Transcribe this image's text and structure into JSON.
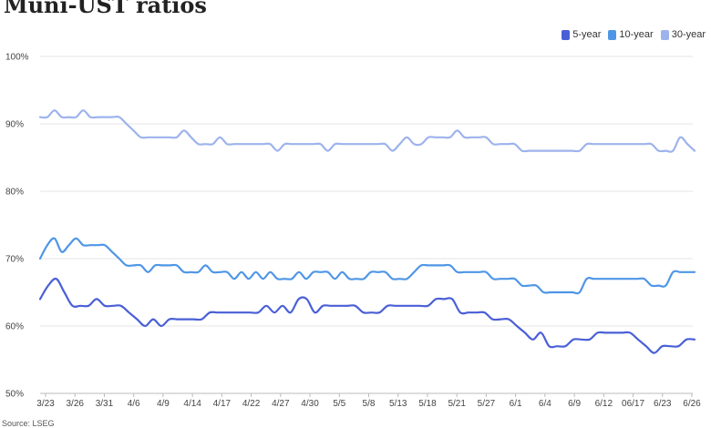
{
  "title": "Muni-UST ratios",
  "source": "Source: LSEG",
  "chart_data": {
    "type": "line",
    "title": "Muni-UST ratios",
    "xlabel": "",
    "ylabel": "",
    "ylim": [
      50,
      100
    ],
    "y_ticks": [
      "50%",
      "60%",
      "70%",
      "80%",
      "90%",
      "100%"
    ],
    "y_tick_values": [
      50,
      60,
      70,
      80,
      90,
      100
    ],
    "x_tick_labels": [
      "3/23",
      "3/26",
      "3/31",
      "4/6",
      "4/9",
      "4/14",
      "4/17",
      "4/22",
      "4/27",
      "4/30",
      "5/5",
      "5/8",
      "5/13",
      "5/18",
      "5/21",
      "5/27",
      "6/1",
      "6/4",
      "6/9",
      "6/12",
      "06/17",
      "6/23",
      "6/26"
    ],
    "grid": true,
    "legend_position": "top-right",
    "series": [
      {
        "name": "5-year",
        "color": "#4a5fd6",
        "values": [
          64,
          66,
          67,
          65,
          63,
          63,
          63,
          64,
          63,
          63,
          63,
          62,
          61,
          60,
          61,
          60,
          61,
          61,
          61,
          61,
          61,
          62,
          62,
          62,
          62,
          62,
          62,
          62,
          63,
          62,
          63,
          62,
          64,
          64,
          62,
          63,
          63,
          63,
          63,
          63,
          62,
          62,
          62,
          63,
          63,
          63,
          63,
          63,
          63,
          64,
          64,
          64,
          62,
          62,
          62,
          62,
          61,
          61,
          61,
          60,
          59,
          58,
          59,
          57,
          57,
          57,
          58,
          58,
          58,
          59,
          59,
          59,
          59,
          59,
          58,
          57,
          56,
          57,
          57,
          57,
          58,
          58
        ]
      },
      {
        "name": "10-year",
        "color": "#4f96e6",
        "values": [
          70,
          72,
          73,
          71,
          72,
          73,
          72,
          72,
          72,
          72,
          71,
          70,
          69,
          69,
          69,
          68,
          69,
          69,
          69,
          69,
          68,
          68,
          68,
          69,
          68,
          68,
          68,
          67,
          68,
          67,
          68,
          67,
          68,
          67,
          67,
          67,
          68,
          67,
          68,
          68,
          68,
          67,
          68,
          67,
          67,
          67,
          68,
          68,
          68,
          67,
          67,
          67,
          68,
          69,
          69,
          69,
          69,
          69,
          68,
          68,
          68,
          68,
          68,
          67,
          67,
          67,
          67,
          66,
          66,
          66,
          65,
          65,
          65,
          65,
          65,
          65,
          67,
          67,
          67,
          67,
          67,
          67,
          67,
          67,
          67,
          66,
          66,
          66,
          68,
          68,
          68,
          68
        ]
      },
      {
        "name": "30-year",
        "color": "#9db3ec",
        "values": [
          91,
          91,
          92,
          91,
          91,
          91,
          92,
          91,
          91,
          91,
          91,
          91,
          90,
          89,
          88,
          88,
          88,
          88,
          88,
          88,
          89,
          88,
          87,
          87,
          87,
          88,
          87,
          87,
          87,
          87,
          87,
          87,
          87,
          86,
          87,
          87,
          87,
          87,
          87,
          87,
          86,
          87,
          87,
          87,
          87,
          87,
          87,
          87,
          87,
          86,
          87,
          88,
          87,
          87,
          88,
          88,
          88,
          88,
          89,
          88,
          88,
          88,
          88,
          87,
          87,
          87,
          87,
          86,
          86,
          86,
          86,
          86,
          86,
          86,
          86,
          86,
          87,
          87,
          87,
          87,
          87,
          87,
          87,
          87,
          87,
          87,
          86,
          86,
          86,
          88,
          87,
          86
        ]
      }
    ]
  }
}
